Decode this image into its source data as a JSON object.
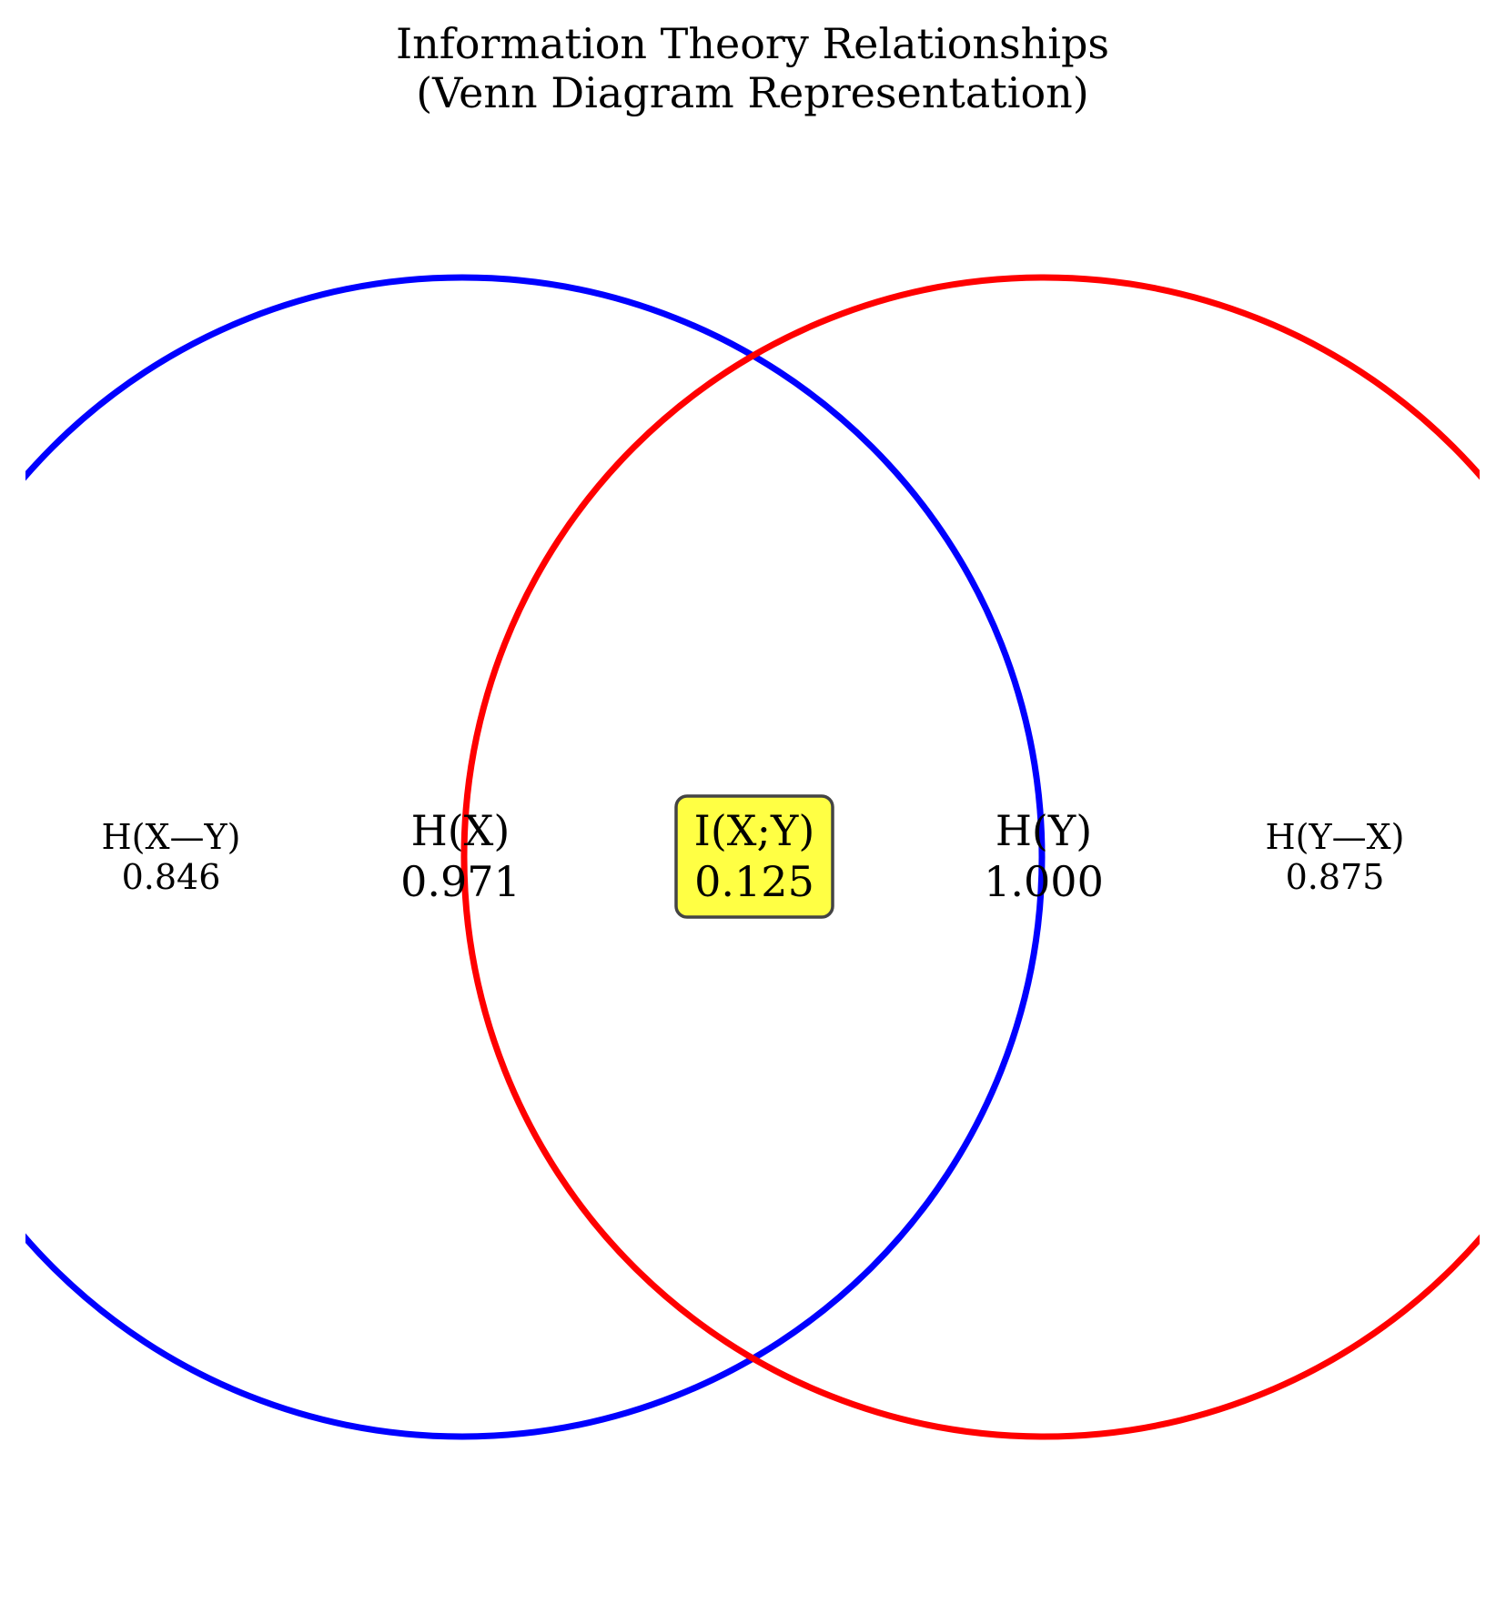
{
  "title": {
    "line1": "Information Theory Relationships",
    "line2": "(Venn Diagram Representation)"
  },
  "colors": {
    "circle_x": "#0000ff",
    "circle_y": "#ff0000",
    "mutual_box_fill": "#ffff44",
    "mutual_box_edge": "#444444"
  },
  "regions": {
    "h_x_given_y": {
      "label": "H(X—Y)",
      "value": "0.846"
    },
    "h_x": {
      "label": "H(X)",
      "value": "0.971"
    },
    "mutual": {
      "label": "I(X;Y)",
      "value": "0.125"
    },
    "h_y": {
      "label": "H(Y)",
      "value": "1.000"
    },
    "h_y_given_x": {
      "label": "H(Y—X)",
      "value": "0.875"
    }
  }
}
